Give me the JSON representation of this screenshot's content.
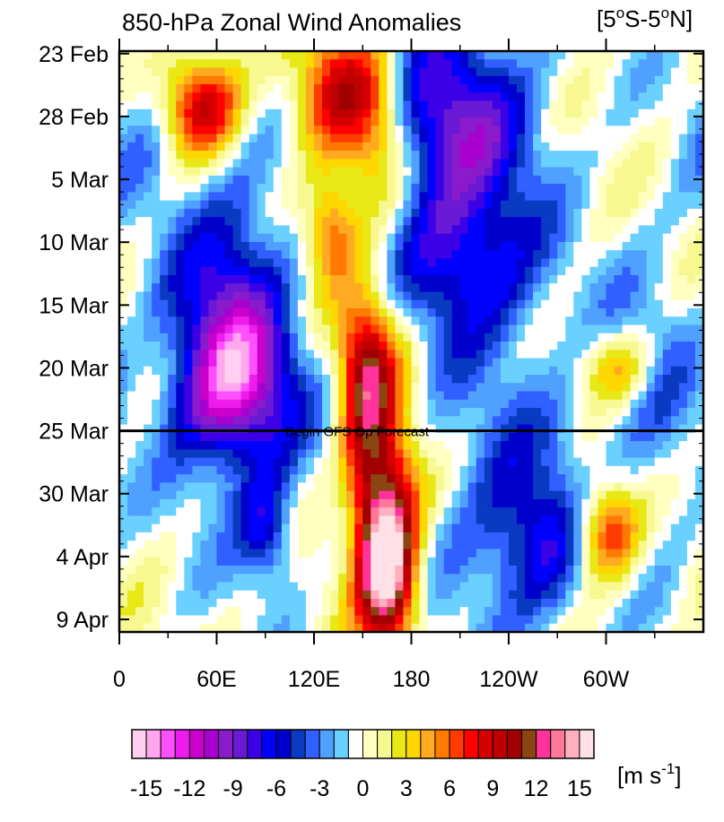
{
  "chart_data": {
    "type": "heatmap",
    "title": "850-hPa Zonal Wind Anomalies",
    "region_label_prefix": "[5",
    "region_label_sup1": "o",
    "region_label_mid": "S-5",
    "region_label_sup2": "o",
    "region_label_suffix": "N]",
    "x_ticks": [
      {
        "lon": 0,
        "label": "0"
      },
      {
        "lon": 60,
        "label": "60E"
      },
      {
        "lon": 120,
        "label": "120E"
      },
      {
        "lon": 180,
        "label": "180"
      },
      {
        "lon": 240,
        "label": "120W"
      },
      {
        "lon": 300,
        "label": "60W"
      }
    ],
    "x_range": [
      0,
      360
    ],
    "y_ticks": [
      {
        "day": 0,
        "label": "23 Feb"
      },
      {
        "day": 5,
        "label": "28 Feb"
      },
      {
        "day": 10,
        "label": "5 Mar"
      },
      {
        "day": 15,
        "label": "10 Mar"
      },
      {
        "day": 20,
        "label": "15 Mar"
      },
      {
        "day": 25,
        "label": "20 Mar"
      },
      {
        "day": 30,
        "label": "25 Mar"
      },
      {
        "day": 35,
        "label": "30 Mar"
      },
      {
        "day": 40,
        "label": "4 Apr"
      },
      {
        "day": 45,
        "label": "9 Apr"
      }
    ],
    "y_range": [
      -0.2,
      46
    ],
    "forecast_line": {
      "day": 30,
      "label": "Begin GFS Op Forecast"
    },
    "contour_levels": [
      -15,
      -14,
      -13,
      -12,
      -11,
      -10,
      -9,
      -8,
      -7,
      -6,
      -5,
      -4,
      -3,
      -2,
      -1,
      0,
      1,
      2,
      3,
      4,
      5,
      6,
      7,
      8,
      9,
      10,
      11,
      12,
      13,
      14,
      15
    ],
    "colorbar_tick_labels": [
      {
        "value": -15,
        "label": "-15"
      },
      {
        "value": -12,
        "label": "-12"
      },
      {
        "value": -9,
        "label": "-9"
      },
      {
        "value": -6,
        "label": "-6"
      },
      {
        "value": -3,
        "label": "-3"
      },
      {
        "value": 0,
        "label": "0"
      },
      {
        "value": 3,
        "label": "3"
      },
      {
        "value": 6,
        "label": "6"
      },
      {
        "value": 9,
        "label": "9"
      },
      {
        "value": 12,
        "label": "12"
      },
      {
        "value": 15,
        "label": "15"
      }
    ],
    "colorbar_colors": [
      "#ffd0ef",
      "#ffa8ee",
      "#ff50ff",
      "#ee1bee",
      "#cc00cc",
      "#a700cf",
      "#8a1acb",
      "#6a1ad4",
      "#3c00e6",
      "#0000ff",
      "#0000cc",
      "#0a39c2",
      "#3060ff",
      "#50a0ff",
      "#6ad0ff",
      "#ffffff",
      "#ffffc0",
      "#f8f890",
      "#e8e817",
      "#ffd700",
      "#ffaa20",
      "#ff7a00",
      "#ff3c00",
      "#ff0000",
      "#d60000",
      "#c00000",
      "#a00000",
      "#8b4513",
      "#ff3399",
      "#ff7799",
      "#ffb0c0",
      "#ffe0e6"
    ],
    "units_label": "[m s",
    "units_sup": "-1",
    "units_close": "]",
    "features": [
      {
        "lon": 50,
        "day": 4,
        "value": 10,
        "sx": 18,
        "sy": 3
      },
      {
        "lon": 135,
        "day": 3,
        "value": 8,
        "sx": 20,
        "sy": 4
      },
      {
        "lon": 160,
        "day": 7,
        "value": 6,
        "sx": 15,
        "sy": 5
      },
      {
        "lon": 130,
        "day": 14,
        "value": 7,
        "sx": 12,
        "sy": 3
      },
      {
        "lon": 155,
        "day": 24,
        "value": 8,
        "sx": 14,
        "sy": 4
      },
      {
        "lon": 165,
        "day": 36,
        "value": 11,
        "sx": 14,
        "sy": 5
      },
      {
        "lon": 165,
        "day": 42,
        "value": 12,
        "sx": 12,
        "sy": 4
      },
      {
        "lon": 150,
        "day": 30,
        "value": 5,
        "sx": 10,
        "sy": 6
      },
      {
        "lon": 300,
        "day": 38,
        "value": 9,
        "sx": 15,
        "sy": 3
      },
      {
        "lon": 310,
        "day": 25,
        "value": 5,
        "sx": 16,
        "sy": 2
      },
      {
        "lon": 205,
        "day": 6,
        "value": -9,
        "sx": 35,
        "sy": 6
      },
      {
        "lon": 215,
        "day": 17,
        "value": -6,
        "sx": 30,
        "sy": 4
      },
      {
        "lon": 70,
        "day": 22,
        "value": -9,
        "sx": 25,
        "sy": 8
      },
      {
        "lon": 70,
        "day": 27,
        "value": -6,
        "sx": 30,
        "sy": 4
      },
      {
        "lon": 90,
        "day": 38,
        "value": -6,
        "sx": 12,
        "sy": 3
      },
      {
        "lon": 260,
        "day": 39,
        "value": -5,
        "sx": 25,
        "sy": 4
      },
      {
        "lon": 20,
        "day": 5,
        "value": -3,
        "sx": 20,
        "sy": 5
      },
      {
        "lon": 330,
        "day": 27,
        "value": -3,
        "sx": 20,
        "sy": 8
      },
      {
        "lon": 240,
        "day": 33,
        "value": -3,
        "sx": 40,
        "sy": 10
      }
    ]
  }
}
